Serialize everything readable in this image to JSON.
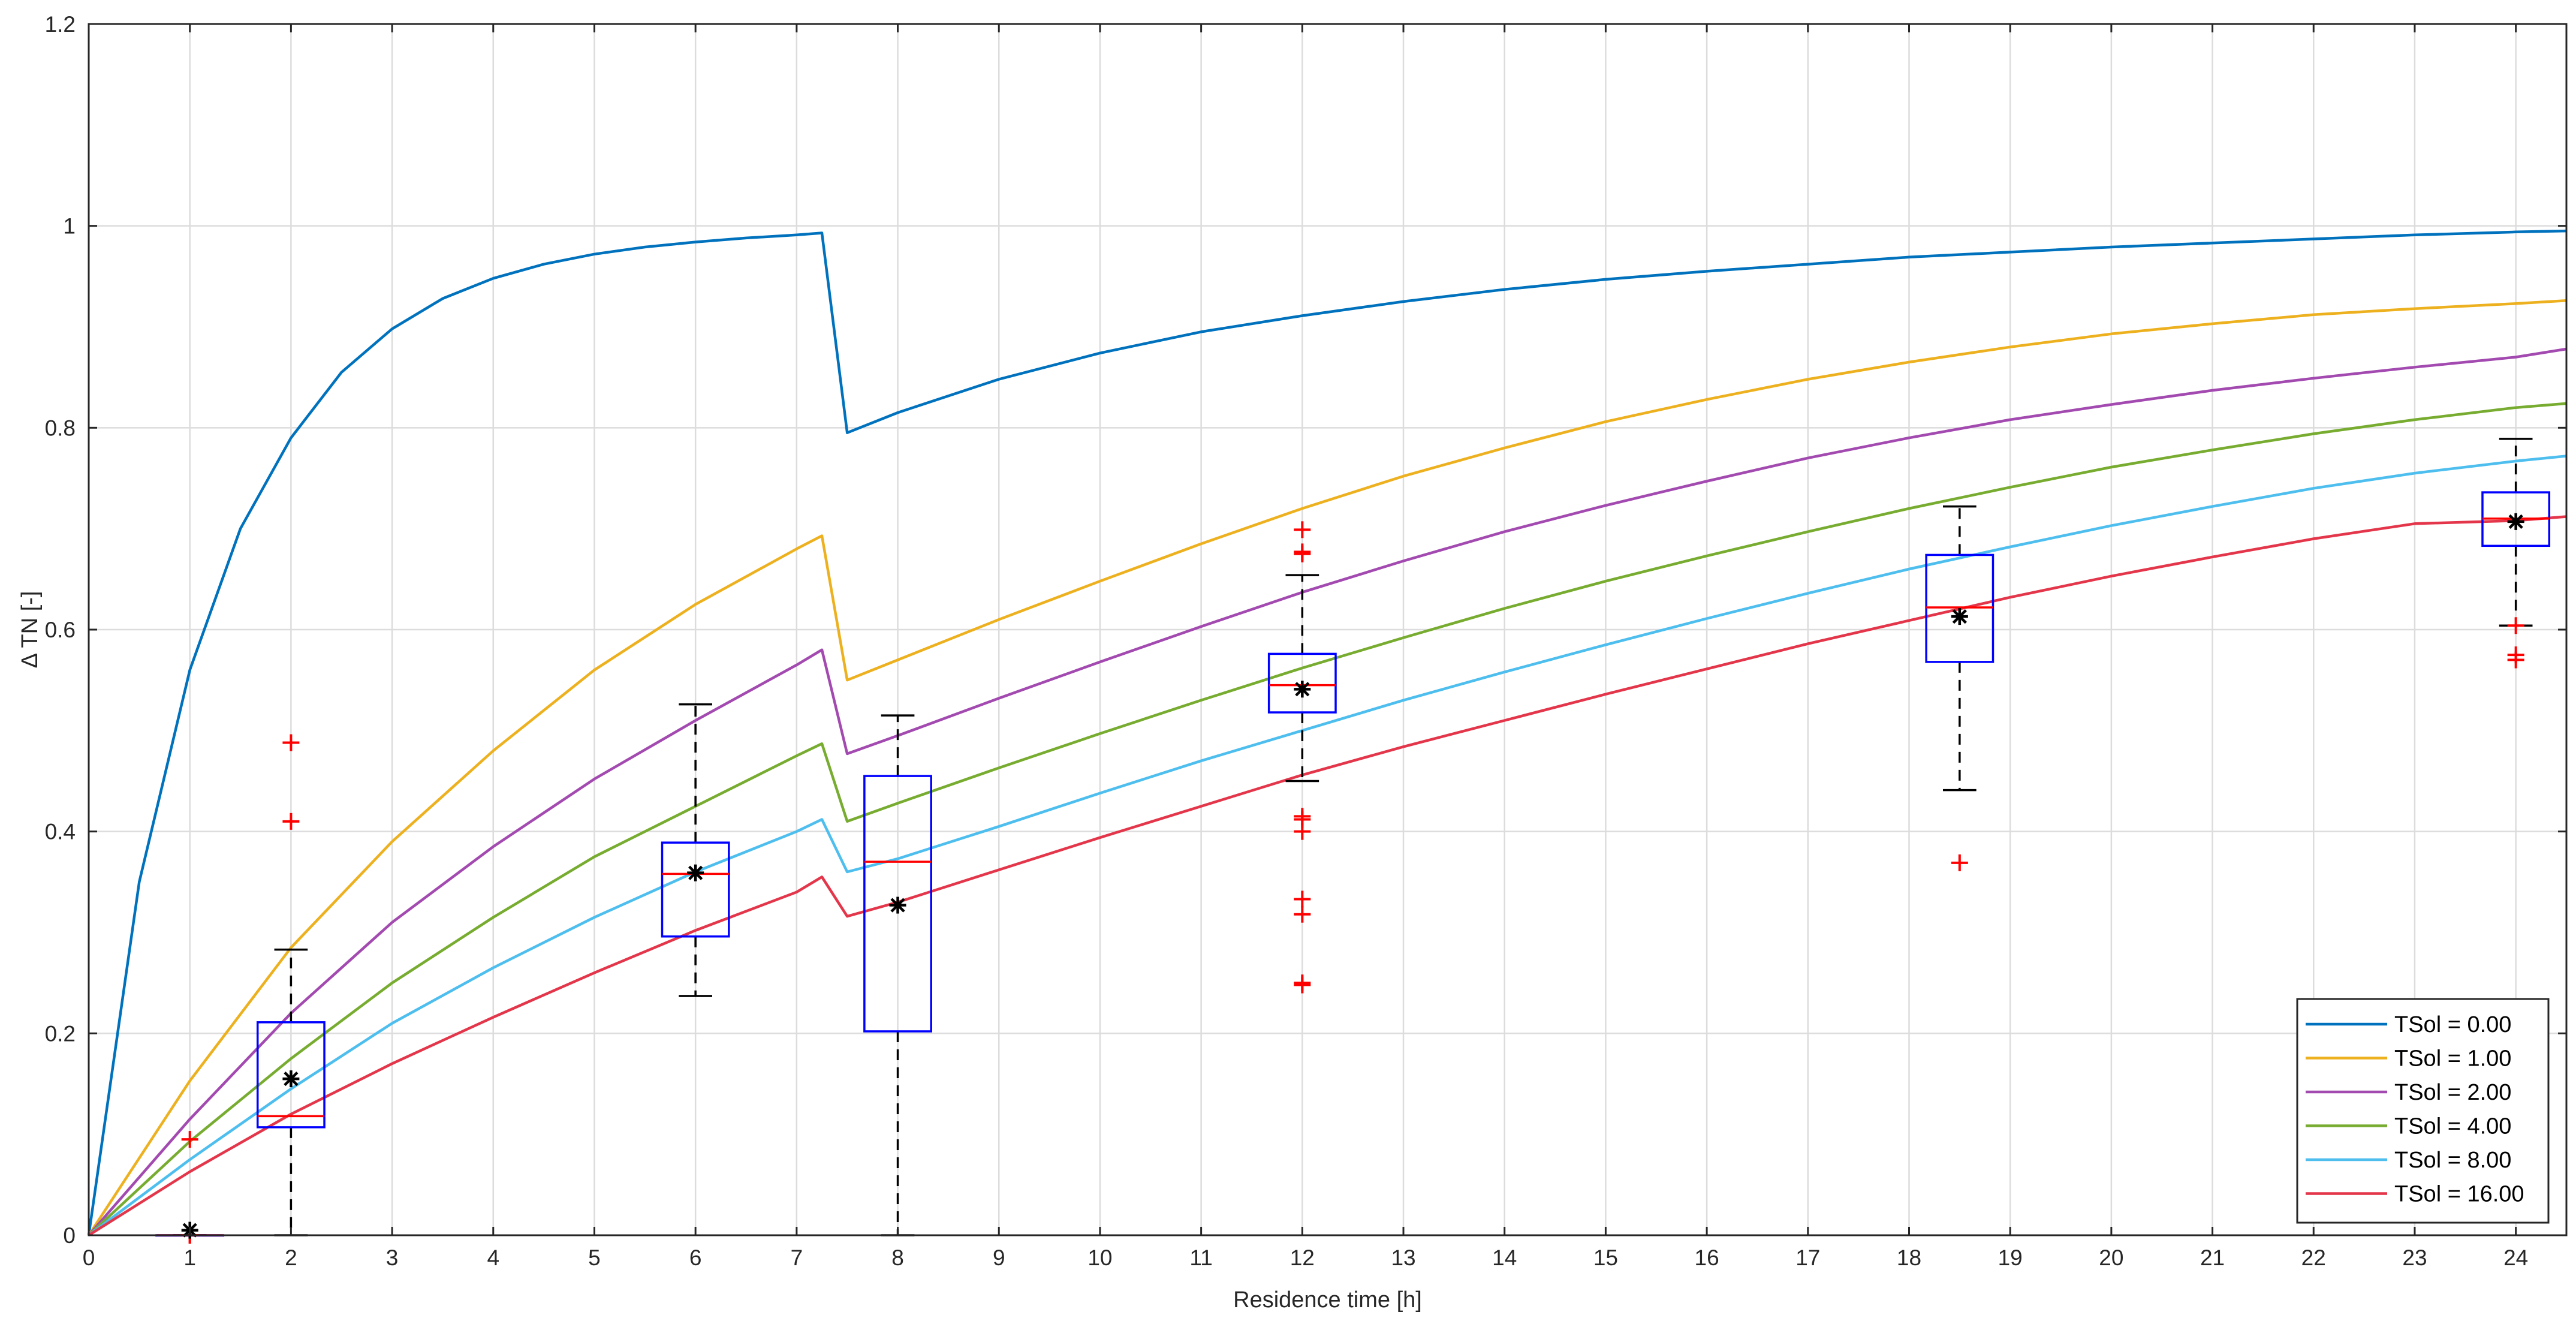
{
  "chart_data": {
    "type": "line",
    "title": "",
    "xlabel": "Residence time [h]",
    "ylabel": "Δ TN [-]",
    "xlim": [
      0,
      24.5
    ],
    "ylim": [
      0,
      1.2
    ],
    "xticks": [
      0,
      1,
      2,
      3,
      4,
      5,
      6,
      7,
      8,
      9,
      10,
      11,
      12,
      13,
      14,
      15,
      16,
      17,
      18,
      19,
      20,
      21,
      22,
      23,
      24
    ],
    "yticks": [
      0,
      0.2,
      0.4,
      0.6,
      0.8,
      1,
      1.2
    ],
    "ytick_labels": [
      "0",
      "0.2",
      "0.4",
      "0.6",
      "0.8",
      "1",
      "1.2"
    ],
    "grid": true,
    "legend_position": "bottom-right",
    "series": [
      {
        "name": "TSol = 0.00",
        "color": "#0072BD",
        "x": [
          0,
          0.5,
          1,
          1.5,
          2,
          2.5,
          3,
          3.5,
          4,
          4.5,
          5,
          5.5,
          6,
          6.5,
          7,
          7.25,
          7.5,
          8,
          9,
          10,
          11,
          12,
          13,
          14,
          15,
          16,
          17,
          18,
          19,
          20,
          21,
          22,
          23,
          24,
          24.5
        ],
        "y": [
          0,
          0.35,
          0.56,
          0.7,
          0.79,
          0.855,
          0.898,
          0.928,
          0.948,
          0.962,
          0.972,
          0.979,
          0.984,
          0.988,
          0.991,
          0.993,
          0.795,
          0.815,
          0.848,
          0.874,
          0.895,
          0.911,
          0.925,
          0.937,
          0.947,
          0.955,
          0.962,
          0.969,
          0.974,
          0.979,
          0.983,
          0.987,
          0.991,
          0.994,
          0.995
        ]
      },
      {
        "name": "TSol = 1.00",
        "color": "#EDB120",
        "x": [
          0,
          1,
          2,
          3,
          4,
          5,
          6,
          7,
          7.25,
          7.5,
          8,
          9,
          10,
          11,
          12,
          13,
          14,
          15,
          16,
          17,
          18,
          19,
          20,
          21,
          22,
          23,
          24,
          24.5
        ],
        "y": [
          0,
          0.153,
          0.285,
          0.39,
          0.48,
          0.56,
          0.625,
          0.68,
          0.693,
          0.55,
          0.57,
          0.61,
          0.648,
          0.685,
          0.72,
          0.752,
          0.78,
          0.806,
          0.828,
          0.848,
          0.865,
          0.88,
          0.893,
          0.903,
          0.912,
          0.918,
          0.923,
          0.926
        ]
      },
      {
        "name": "TSol = 2.00",
        "color": "#A34AB0",
        "x": [
          0,
          1,
          2,
          3,
          4,
          5,
          6,
          7,
          7.25,
          7.5,
          8,
          9,
          10,
          11,
          12,
          13,
          14,
          15,
          16,
          17,
          18,
          19,
          20,
          21,
          22,
          23,
          24,
          24.5
        ],
        "y": [
          0,
          0.115,
          0.22,
          0.31,
          0.385,
          0.452,
          0.51,
          0.565,
          0.58,
          0.477,
          0.495,
          0.532,
          0.568,
          0.603,
          0.637,
          0.668,
          0.697,
          0.723,
          0.747,
          0.77,
          0.79,
          0.808,
          0.823,
          0.837,
          0.849,
          0.86,
          0.87,
          0.878
        ]
      },
      {
        "name": "TSol = 4.00",
        "color": "#77AC30",
        "x": [
          0,
          1,
          2,
          3,
          4,
          5,
          6,
          7,
          7.25,
          7.5,
          8,
          9,
          10,
          11,
          12,
          13,
          14,
          15,
          16,
          17,
          18,
          19,
          20,
          21,
          22,
          23,
          24,
          24.5
        ],
        "y": [
          0,
          0.093,
          0.175,
          0.25,
          0.315,
          0.375,
          0.425,
          0.475,
          0.487,
          0.41,
          0.428,
          0.463,
          0.497,
          0.53,
          0.562,
          0.592,
          0.621,
          0.648,
          0.673,
          0.697,
          0.72,
          0.741,
          0.761,
          0.778,
          0.794,
          0.808,
          0.82,
          0.824
        ]
      },
      {
        "name": "TSol = 8.00",
        "color": "#4DBEEE",
        "x": [
          0,
          1,
          2,
          3,
          4,
          5,
          6,
          7,
          7.25,
          7.5,
          8,
          9,
          10,
          11,
          12,
          13,
          14,
          15,
          16,
          17,
          18,
          19,
          20,
          21,
          22,
          23,
          24,
          24.5
        ],
        "y": [
          0,
          0.075,
          0.145,
          0.21,
          0.265,
          0.315,
          0.36,
          0.4,
          0.412,
          0.36,
          0.373,
          0.405,
          0.438,
          0.47,
          0.5,
          0.53,
          0.558,
          0.585,
          0.611,
          0.636,
          0.66,
          0.682,
          0.703,
          0.722,
          0.74,
          0.755,
          0.767,
          0.772
        ]
      },
      {
        "name": "TSol = 16.00",
        "color": "#E4364A",
        "x": [
          0,
          1,
          2,
          3,
          4,
          5,
          6,
          7,
          7.25,
          7.5,
          8,
          9,
          10,
          11,
          12,
          13,
          14,
          15,
          16,
          17,
          18,
          19,
          20,
          21,
          22,
          23,
          24,
          24.5
        ],
        "y": [
          0,
          0.063,
          0.12,
          0.17,
          0.216,
          0.26,
          0.302,
          0.34,
          0.355,
          0.316,
          0.33,
          0.362,
          0.394,
          0.425,
          0.456,
          0.484,
          0.51,
          0.536,
          0.561,
          0.586,
          0.609,
          0.632,
          0.653,
          0.672,
          0.69,
          0.705,
          0.708,
          0.712
        ]
      }
    ],
    "boxplots": [
      {
        "x": 1,
        "whisker_low": 0,
        "q1": 0,
        "median": 0,
        "q3": 0,
        "whisker_high": 0,
        "mean": 0.005,
        "outliers": [
          0.095,
          0.0,
          0.0
        ]
      },
      {
        "x": 2,
        "whisker_low": 0,
        "q1": 0.107,
        "median": 0.118,
        "q3": 0.211,
        "whisker_high": 0.283,
        "mean": 0.155,
        "outliers": [
          0.488,
          0.41
        ]
      },
      {
        "x": 6,
        "whisker_low": 0.237,
        "q1": 0.296,
        "median": 0.358,
        "q3": 0.389,
        "whisker_high": 0.526,
        "mean": 0.359,
        "outliers": []
      },
      {
        "x": 8,
        "whisker_low": 0,
        "q1": 0.202,
        "median": 0.37,
        "q3": 0.455,
        "whisker_high": 0.515,
        "mean": 0.327,
        "outliers": []
      },
      {
        "x": 12,
        "whisker_low": 0.45,
        "q1": 0.518,
        "median": 0.545,
        "q3": 0.576,
        "whisker_high": 0.654,
        "mean": 0.541,
        "outliers": [
          0.699,
          0.677,
          0.675,
          0.415,
          0.412,
          0.4,
          0.333,
          0.318,
          0.25,
          0.248
        ]
      },
      {
        "x": 18.5,
        "whisker_low": 0.441,
        "q1": 0.568,
        "median": 0.622,
        "q3": 0.674,
        "whisker_high": 0.722,
        "mean": 0.613,
        "outliers": [
          0.369
        ]
      },
      {
        "x": 24,
        "whisker_low": 0.604,
        "q1": 0.683,
        "median": 0.71,
        "q3": 0.736,
        "whisker_high": 0.789,
        "mean": 0.707,
        "outliers": [
          0.604,
          0.575,
          0.57
        ]
      }
    ],
    "box_color": "#0000FF",
    "median_color": "#FF0000",
    "outlier_color": "#FF0000",
    "mean_color": "#000000"
  }
}
